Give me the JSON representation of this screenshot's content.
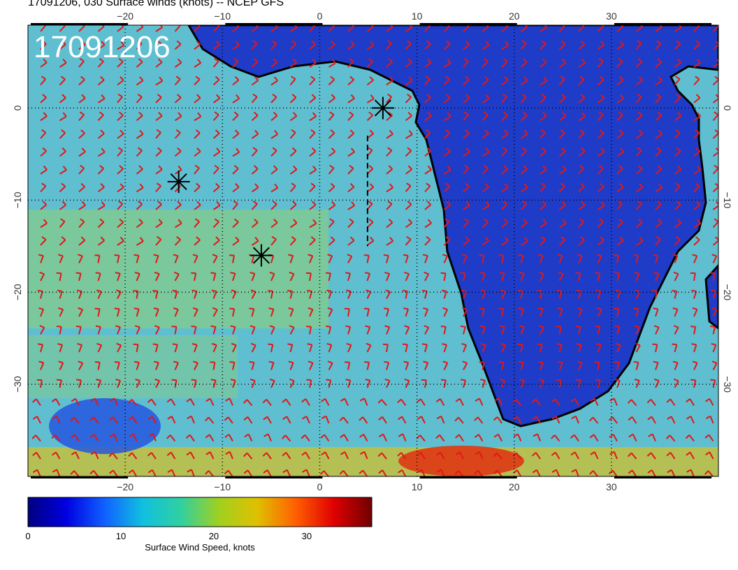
{
  "title": "17091206, 030 Surface winds (knots) -- NCEP GFS",
  "map_label": "17091206",
  "map": {
    "lon_range": [
      -30,
      41
    ],
    "lat_range": [
      -40,
      9
    ],
    "lon_ticks": [
      "−20",
      "−10",
      "0",
      "10",
      "20",
      "30"
    ],
    "lat_ticks": [
      "0",
      "−10",
      "−20",
      "−30"
    ],
    "markers": [
      {
        "name": "marker-west",
        "lon": -14.5,
        "lat": -8
      },
      {
        "name": "marker-south",
        "lon": -6,
        "lat": -16
      },
      {
        "name": "marker-gulf",
        "lon": 6.5,
        "lat": 0
      }
    ],
    "barb_color": "#e01818",
    "ocean_color": "#5fbfd0",
    "land_color": "#1e3cc8"
  },
  "colorbar": {
    "label": "Surface Wind Speed, knots",
    "ticks": [
      "0",
      "10",
      "20",
      "30"
    ],
    "tick_values": [
      0,
      10,
      20,
      30
    ],
    "range": [
      0,
      37
    ],
    "colors": [
      "#000080",
      "#0000e0",
      "#1060ff",
      "#10c0e0",
      "#30d0a0",
      "#a0d020",
      "#e0c000",
      "#ff6000",
      "#e00000",
      "#700000"
    ]
  }
}
